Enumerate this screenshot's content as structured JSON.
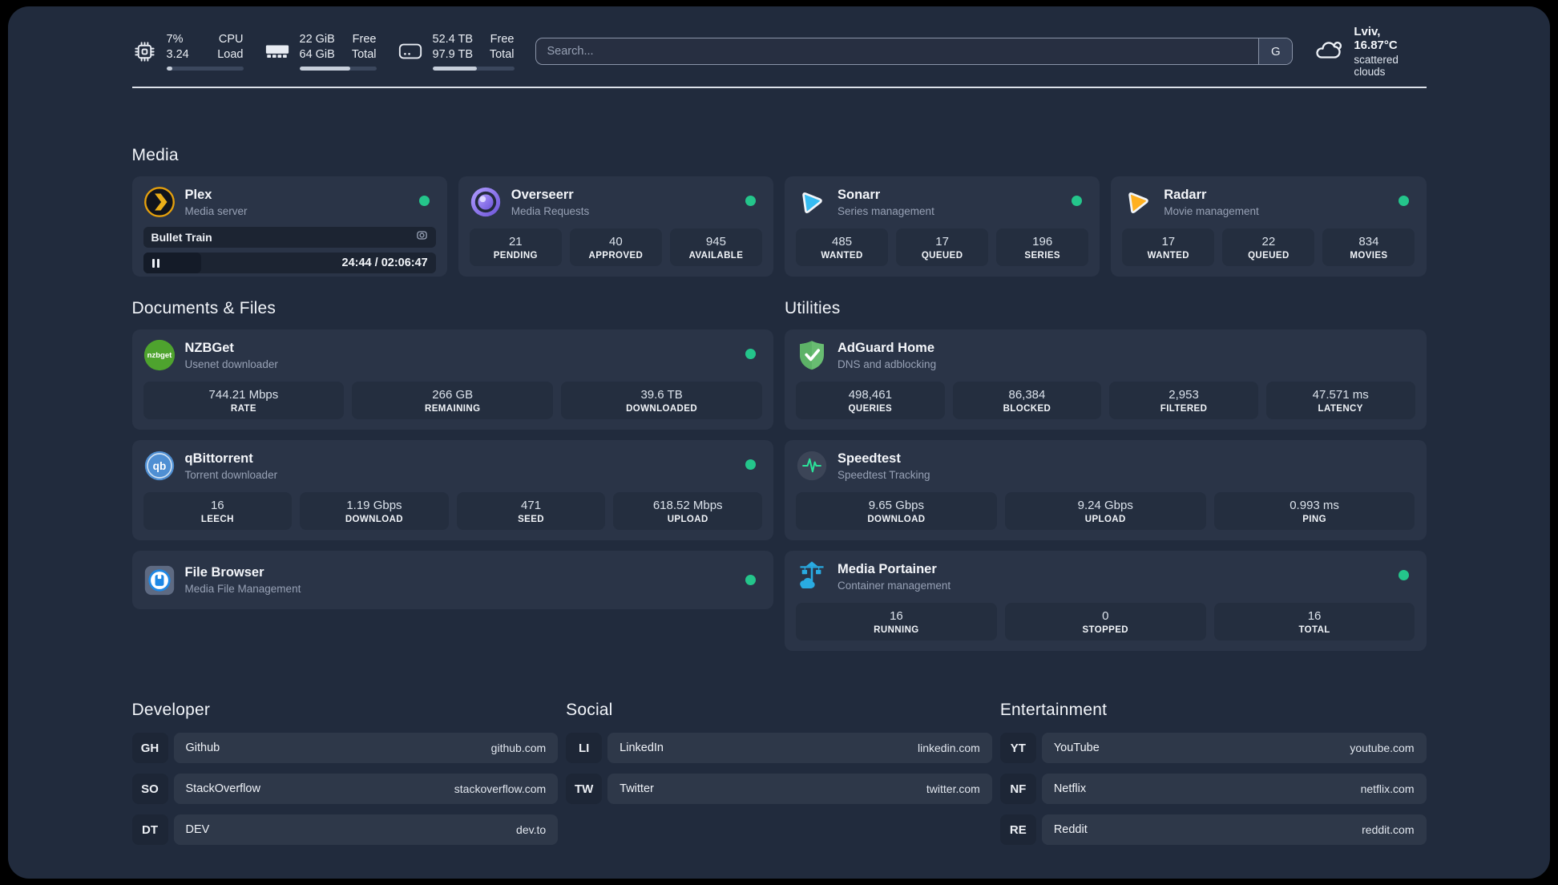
{
  "colors": {
    "panel_bg": "#212B3D",
    "card_bg": "#2A3447",
    "tile_bg": "#242E3F",
    "status_online": "#24C58B",
    "divider": "#DCE1E9",
    "plex_accent": "#E5A00D",
    "sonarr_accent": "#36BCF2",
    "radarr_accent": "#FFB020",
    "nzbget_accent": "#4EA32E",
    "adguard_accent": "#68BC71",
    "qbittorrent_accent": "#4F8FD3",
    "speedtest_accent": "#2BE39A",
    "filebrowser_accent": "#1E88E5",
    "portainer_accent": "#29ABE2"
  },
  "header": {
    "cpu": {
      "v1": "7%",
      "l1": "CPU",
      "v2": "3.24",
      "l2": "Load",
      "progress": 8
    },
    "ram": {
      "v1": "22 GiB",
      "l1": "Free",
      "v2": "64 GiB",
      "l2": "Total",
      "progress": 66
    },
    "disk": {
      "v1": "52.4 TB",
      "l1": "Free",
      "v2": "97.9 TB",
      "l2": "Total",
      "progress": 54
    },
    "search": {
      "placeholder": "Search...",
      "button_label": "G"
    },
    "weather": {
      "location": "Lviv, 16.87°C",
      "condition": "scattered clouds"
    }
  },
  "sections": {
    "media": {
      "title": "Media"
    },
    "documents": {
      "title": "Documents & Files"
    },
    "utilities": {
      "title": "Utilities"
    }
  },
  "apps": {
    "plex": {
      "name": "Plex",
      "desc": "Media server",
      "online": true,
      "now_playing": {
        "title": "Bullet Train",
        "time": "24:44 / 02:06:47"
      }
    },
    "overseerr": {
      "name": "Overseerr",
      "desc": "Media Requests",
      "online": true,
      "stats": [
        {
          "value": "21",
          "label": "PENDING"
        },
        {
          "value": "40",
          "label": "APPROVED"
        },
        {
          "value": "945",
          "label": "AVAILABLE"
        }
      ]
    },
    "sonarr": {
      "name": "Sonarr",
      "desc": "Series management",
      "online": true,
      "stats": [
        {
          "value": "485",
          "label": "WANTED"
        },
        {
          "value": "17",
          "label": "QUEUED"
        },
        {
          "value": "196",
          "label": "SERIES"
        }
      ]
    },
    "radarr": {
      "name": "Radarr",
      "desc": "Movie management",
      "online": true,
      "stats": [
        {
          "value": "17",
          "label": "WANTED"
        },
        {
          "value": "22",
          "label": "QUEUED"
        },
        {
          "value": "834",
          "label": "MOVIES"
        }
      ]
    },
    "nzbget": {
      "name": "NZBGet",
      "desc": "Usenet downloader",
      "online": true,
      "stats": [
        {
          "value": "744.21 Mbps",
          "label": "RATE"
        },
        {
          "value": "266 GB",
          "label": "REMAINING"
        },
        {
          "value": "39.6 TB",
          "label": "DOWNLOADED"
        }
      ]
    },
    "qbittorrent": {
      "name": "qBittorrent",
      "desc": "Torrent downloader",
      "online": true,
      "stats": [
        {
          "value": "16",
          "label": "LEECH"
        },
        {
          "value": "1.19 Gbps",
          "label": "DOWNLOAD"
        },
        {
          "value": "471",
          "label": "SEED"
        },
        {
          "value": "618.52 Mbps",
          "label": "UPLOAD"
        }
      ]
    },
    "filebrowser": {
      "name": "File Browser",
      "desc": "Media File Management",
      "online": true
    },
    "adguard": {
      "name": "AdGuard Home",
      "desc": "DNS and adblocking",
      "stats": [
        {
          "value": "498,461",
          "label": "QUERIES"
        },
        {
          "value": "86,384",
          "label": "BLOCKED"
        },
        {
          "value": "2,953",
          "label": "FILTERED"
        },
        {
          "value": "47.571 ms",
          "label": "LATENCY"
        }
      ]
    },
    "speedtest": {
      "name": "Speedtest",
      "desc": "Speedtest Tracking",
      "stats": [
        {
          "value": "9.65 Gbps",
          "label": "DOWNLOAD"
        },
        {
          "value": "9.24 Gbps",
          "label": "UPLOAD"
        },
        {
          "value": "0.993 ms",
          "label": "PING"
        }
      ]
    },
    "portainer": {
      "name": "Media Portainer",
      "desc": "Container management",
      "online": true,
      "stats": [
        {
          "value": "16",
          "label": "RUNNING"
        },
        {
          "value": "0",
          "label": "STOPPED"
        },
        {
          "value": "16",
          "label": "TOTAL"
        }
      ]
    }
  },
  "links": {
    "developer": {
      "title": "Developer",
      "items": [
        {
          "abbrev": "GH",
          "name": "Github",
          "url": "github.com"
        },
        {
          "abbrev": "SO",
          "name": "StackOverflow",
          "url": "stackoverflow.com"
        },
        {
          "abbrev": "DT",
          "name": "DEV",
          "url": "dev.to"
        }
      ]
    },
    "social": {
      "title": "Social",
      "items": [
        {
          "abbrev": "LI",
          "name": "LinkedIn",
          "url": "linkedin.com"
        },
        {
          "abbrev": "TW",
          "name": "Twitter",
          "url": "twitter.com"
        }
      ]
    },
    "entertainment": {
      "title": "Entertainment",
      "items": [
        {
          "abbrev": "YT",
          "name": "YouTube",
          "url": "youtube.com"
        },
        {
          "abbrev": "NF",
          "name": "Netflix",
          "url": "netflix.com"
        },
        {
          "abbrev": "RE",
          "name": "Reddit",
          "url": "reddit.com"
        }
      ]
    }
  }
}
